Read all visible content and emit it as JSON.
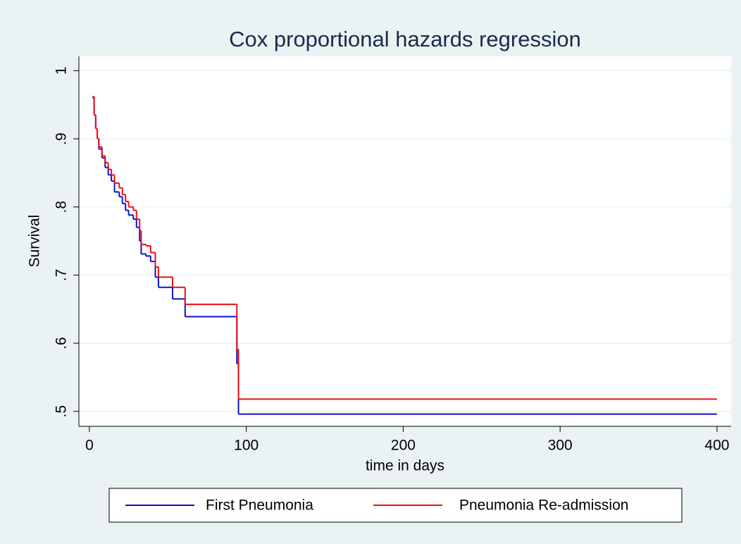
{
  "chart_data": {
    "type": "step",
    "title": "Cox proportional hazards regression",
    "x_label": "time in days",
    "y_label": "Survival",
    "x": [
      2,
      3,
      4,
      5,
      6,
      8,
      10,
      12,
      14,
      16,
      19,
      21,
      23,
      25,
      28,
      30,
      32,
      33,
      36,
      39,
      42,
      44,
      53,
      61,
      94,
      95,
      400
    ],
    "series": [
      {
        "name": "First Pneumonia",
        "color": "#1010d0",
        "values": [
          0.96,
          0.935,
          0.915,
          0.9,
          0.885,
          0.872,
          0.858,
          0.847,
          0.838,
          0.822,
          0.815,
          0.805,
          0.795,
          0.788,
          0.782,
          0.77,
          0.75,
          0.731,
          0.728,
          0.72,
          0.697,
          0.682,
          0.665,
          0.639,
          0.57,
          0.496,
          0.496
        ]
      },
      {
        "name": "Pneumonia Re-admission",
        "color": "#e81010",
        "values": [
          0.962,
          0.935,
          0.915,
          0.9,
          0.888,
          0.875,
          0.865,
          0.855,
          0.847,
          0.835,
          0.828,
          0.818,
          0.808,
          0.8,
          0.795,
          0.782,
          0.765,
          0.745,
          0.743,
          0.733,
          0.712,
          0.697,
          0.682,
          0.657,
          0.591,
          0.518,
          0.518
        ]
      }
    ],
    "xlim": [
      -6.7,
      409
    ],
    "xticks": [
      0,
      100,
      200,
      300,
      400
    ],
    "ylim": [
      0.478,
      1.021
    ],
    "yticks": [
      {
        "value": 0.5,
        "label": ".5"
      },
      {
        "value": 0.6,
        "label": ".6"
      },
      {
        "value": 0.7,
        "label": ".7"
      },
      {
        "value": 0.8,
        "label": ".8"
      },
      {
        "value": 0.9,
        "label": ".9"
      },
      1
    ],
    "grid": true,
    "legend": "bottom"
  }
}
